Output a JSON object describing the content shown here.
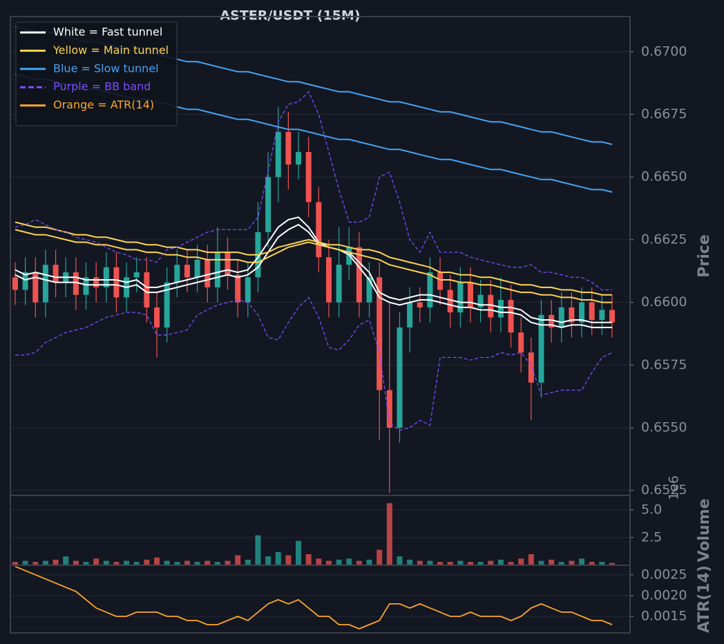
{
  "chart_data": [
    {
      "type": "candlestick",
      "title": "ASTER/USDT (15M)",
      "ylabel": "Price",
      "ylim": [
        0.6523,
        0.6714
      ],
      "yticks": [
        {
          "value": 0.6525,
          "label": "0.6525"
        },
        {
          "value": 0.655,
          "label": "0.6550"
        },
        0.6575,
        {
          "value": 0.66,
          "label": "0.6600"
        },
        0.6625,
        {
          "value": 0.665,
          "label": "0.6650"
        },
        0.6675,
        {
          "value": 0.67,
          "label": "0.6700"
        }
      ],
      "grid": true,
      "legend": "upper left",
      "up_color": "#26a69a",
      "down_color": "#ef5350",
      "open": [
        0.661,
        0.6605,
        0.6612,
        0.66,
        0.6615,
        0.6608,
        0.6612,
        0.6603,
        0.661,
        0.6606,
        0.6614,
        0.6602,
        0.661,
        0.6612,
        0.6598,
        0.659,
        0.6608,
        0.6615,
        0.661,
        0.6617,
        0.6606,
        0.662,
        0.6611,
        0.66,
        0.661,
        0.6628,
        0.665,
        0.6668,
        0.6655,
        0.666,
        0.664,
        0.6618,
        0.66,
        0.6615,
        0.6622,
        0.66,
        0.661,
        0.6565,
        0.655,
        0.659,
        0.66,
        0.6598,
        0.6612,
        0.6605,
        0.6596,
        0.6608,
        0.6598,
        0.6603,
        0.6594,
        0.6601,
        0.6588,
        0.658,
        0.6568,
        0.6595,
        0.659,
        0.6598,
        0.6592,
        0.66,
        0.6593,
        0.6597
      ],
      "high": [
        0.6616,
        0.6618,
        0.6618,
        0.6621,
        0.6621,
        0.6618,
        0.6618,
        0.6616,
        0.6616,
        0.662,
        0.662,
        0.6616,
        0.6618,
        0.6618,
        0.6604,
        0.6614,
        0.6621,
        0.6621,
        0.6623,
        0.6623,
        0.663,
        0.6626,
        0.6617,
        0.6616,
        0.664,
        0.666,
        0.6678,
        0.6676,
        0.6668,
        0.6666,
        0.6646,
        0.6625,
        0.663,
        0.663,
        0.6628,
        0.6616,
        0.6616,
        0.66,
        0.6596,
        0.6606,
        0.6606,
        0.6618,
        0.6618,
        0.6611,
        0.6614,
        0.6614,
        0.6609,
        0.6609,
        0.661,
        0.6607,
        0.6594,
        0.6586,
        0.6601,
        0.6601,
        0.6604,
        0.6604,
        0.6606,
        0.6606,
        0.6603,
        0.6603
      ],
      "low": [
        0.6599,
        0.6599,
        0.6594,
        0.6594,
        0.6602,
        0.6602,
        0.6597,
        0.6597,
        0.66,
        0.66,
        0.6596,
        0.6596,
        0.6604,
        0.6592,
        0.6578,
        0.6584,
        0.6602,
        0.6604,
        0.6604,
        0.66,
        0.66,
        0.6605,
        0.6594,
        0.6594,
        0.6604,
        0.6622,
        0.664,
        0.6645,
        0.6649,
        0.6634,
        0.6612,
        0.6594,
        0.6594,
        0.6609,
        0.6594,
        0.6594,
        0.6545,
        0.6524,
        0.6544,
        0.658,
        0.6592,
        0.6592,
        0.6599,
        0.659,
        0.659,
        0.6592,
        0.6592,
        0.6588,
        0.6588,
        0.6582,
        0.6572,
        0.6553,
        0.6562,
        0.6584,
        0.6584,
        0.6586,
        0.6586,
        0.6587,
        0.6587,
        0.6586
      ],
      "close": [
        0.6605,
        0.6612,
        0.66,
        0.6615,
        0.6608,
        0.6612,
        0.6603,
        0.661,
        0.6606,
        0.6614,
        0.6602,
        0.661,
        0.6612,
        0.6598,
        0.659,
        0.6608,
        0.6615,
        0.661,
        0.6617,
        0.6606,
        0.662,
        0.6611,
        0.66,
        0.661,
        0.6628,
        0.665,
        0.6668,
        0.6655,
        0.666,
        0.664,
        0.6618,
        0.66,
        0.6615,
        0.6622,
        0.66,
        0.661,
        0.6565,
        0.655,
        0.659,
        0.66,
        0.6598,
        0.6612,
        0.6605,
        0.6596,
        0.6608,
        0.6598,
        0.6603,
        0.6594,
        0.6601,
        0.6588,
        0.658,
        0.6568,
        0.6595,
        0.659,
        0.6598,
        0.6592,
        0.66,
        0.6593,
        0.6597,
        0.6592
      ],
      "series": [
        {
          "name": "White = Fast tunnel",
          "color": "#ffffff",
          "dashed": false,
          "lines": [
            [
              0.6613,
              0.6611,
              0.6612,
              0.6611,
              0.661,
              0.661,
              0.661,
              0.6609,
              0.6609,
              0.6609,
              0.6609,
              0.6608,
              0.6609,
              0.6606,
              0.6606,
              0.6607,
              0.6608,
              0.6609,
              0.661,
              0.6611,
              0.6612,
              0.6613,
              0.6612,
              0.6613,
              0.6618,
              0.6624,
              0.663,
              0.6633,
              0.6634,
              0.663,
              0.6624,
              0.6622,
              0.6621,
              0.662,
              0.6616,
              0.6612,
              0.6604,
              0.6602,
              0.6601,
              0.6602,
              0.6603,
              0.6603,
              0.6602,
              0.6601,
              0.66,
              0.66,
              0.6599,
              0.6599,
              0.6598,
              0.6598,
              0.6597,
              0.6594,
              0.6593,
              0.6593,
              0.6592,
              0.6593,
              0.6593,
              0.6592,
              0.6592,
              0.6592
            ],
            [
              0.6611,
              0.6609,
              0.661,
              0.6609,
              0.6608,
              0.6608,
              0.6608,
              0.6607,
              0.6607,
              0.6607,
              0.6607,
              0.6606,
              0.6607,
              0.6604,
              0.6604,
              0.6605,
              0.6606,
              0.6607,
              0.6608,
              0.6609,
              0.661,
              0.6611,
              0.661,
              0.6611,
              0.6614,
              0.662,
              0.6626,
              0.6629,
              0.6631,
              0.6628,
              0.6623,
              0.6622,
              0.6621,
              0.6619,
              0.6614,
              0.6609,
              0.6602,
              0.66,
              0.6599,
              0.66,
              0.6601,
              0.6601,
              0.66,
              0.6599,
              0.6598,
              0.6598,
              0.6597,
              0.6597,
              0.6596,
              0.6596,
              0.6595,
              0.6592,
              0.6591,
              0.6591,
              0.659,
              0.6591,
              0.6591,
              0.659,
              0.659,
              0.659
            ]
          ]
        },
        {
          "name": "Yellow = Main tunnel",
          "color": "#ffd54f",
          "dashed": false,
          "lines": [
            [
              0.6632,
              0.6631,
              0.663,
              0.663,
              0.6629,
              0.6628,
              0.6627,
              0.6627,
              0.6626,
              0.6626,
              0.6625,
              0.6624,
              0.6624,
              0.6623,
              0.6623,
              0.6622,
              0.6622,
              0.6621,
              0.6621,
              0.662,
              0.662,
              0.662,
              0.662,
              0.6619,
              0.6619,
              0.662,
              0.6622,
              0.6623,
              0.6624,
              0.6625,
              0.6624,
              0.6623,
              0.6623,
              0.6622,
              0.6621,
              0.6621,
              0.662,
              0.6618,
              0.6617,
              0.6616,
              0.6615,
              0.6614,
              0.6612,
              0.6612,
              0.6611,
              0.6611,
              0.661,
              0.661,
              0.6609,
              0.6608,
              0.6607,
              0.6607,
              0.6606,
              0.6606,
              0.6605,
              0.6605,
              0.6604,
              0.6604,
              0.6603,
              0.6603
            ],
            [
              0.6629,
              0.6628,
              0.6627,
              0.6627,
              0.6626,
              0.6625,
              0.6624,
              0.6624,
              0.6623,
              0.6623,
              0.6622,
              0.6621,
              0.6621,
              0.662,
              0.662,
              0.6619,
              0.6619,
              0.6618,
              0.6618,
              0.6617,
              0.6617,
              0.6617,
              0.6617,
              0.6616,
              0.6616,
              0.6618,
              0.662,
              0.6622,
              0.6623,
              0.6624,
              0.6623,
              0.6622,
              0.6621,
              0.662,
              0.6619,
              0.6618,
              0.6617,
              0.6615,
              0.6614,
              0.6613,
              0.6612,
              0.6611,
              0.6609,
              0.6609,
              0.6608,
              0.6608,
              0.6607,
              0.6607,
              0.6606,
              0.6605,
              0.6604,
              0.6604,
              0.6603,
              0.6603,
              0.6602,
              0.6602,
              0.6601,
              0.6601,
              0.66,
              0.66
            ]
          ]
        },
        {
          "name": "Blue = Slow tunnel",
          "color": "#42a5f5",
          "dashed": false,
          "lines": [
            [
              0.671,
              0.6709,
              0.6708,
              0.6708,
              0.6707,
              0.6706,
              0.6705,
              0.6704,
              0.6704,
              0.6703,
              0.6702,
              0.6701,
              0.67,
              0.67,
              0.6699,
              0.6698,
              0.6697,
              0.6696,
              0.6696,
              0.6695,
              0.6694,
              0.6693,
              0.6692,
              0.6692,
              0.6691,
              0.669,
              0.6689,
              0.6688,
              0.6688,
              0.6687,
              0.6686,
              0.6685,
              0.6684,
              0.6684,
              0.6683,
              0.6682,
              0.6681,
              0.668,
              0.668,
              0.6679,
              0.6678,
              0.6677,
              0.6676,
              0.6676,
              0.6675,
              0.6674,
              0.6673,
              0.6672,
              0.6672,
              0.6671,
              0.667,
              0.6669,
              0.6668,
              0.6668,
              0.6667,
              0.6666,
              0.6665,
              0.6664,
              0.6664,
              0.6663
            ],
            [
              0.6691,
              0.669,
              0.6689,
              0.6689,
              0.6688,
              0.6687,
              0.6686,
              0.6685,
              0.6685,
              0.6684,
              0.6683,
              0.6682,
              0.6681,
              0.6681,
              0.668,
              0.6679,
              0.6678,
              0.6677,
              0.6677,
              0.6676,
              0.6675,
              0.6674,
              0.6673,
              0.6673,
              0.6672,
              0.6671,
              0.667,
              0.6669,
              0.6669,
              0.6668,
              0.6667,
              0.6666,
              0.6665,
              0.6665,
              0.6664,
              0.6663,
              0.6662,
              0.6661,
              0.6661,
              0.666,
              0.6659,
              0.6658,
              0.6657,
              0.6657,
              0.6656,
              0.6655,
              0.6654,
              0.6653,
              0.6653,
              0.6652,
              0.6651,
              0.665,
              0.6649,
              0.6649,
              0.6648,
              0.6647,
              0.6646,
              0.6645,
              0.6645,
              0.6644
            ]
          ]
        },
        {
          "name": "Purple = BB band",
          "color": "#7c4dff",
          "dashed": true,
          "lines": [
            [
              0.663,
              0.6631,
              0.6633,
              0.6631,
              0.6629,
              0.6628,
              0.6626,
              0.6625,
              0.6624,
              0.6622,
              0.662,
              0.6619,
              0.6617,
              0.6617,
              0.6616,
              0.6621,
              0.6622,
              0.6624,
              0.6626,
              0.6628,
              0.6629,
              0.6629,
              0.6629,
              0.6629,
              0.6634,
              0.6652,
              0.6672,
              0.6679,
              0.668,
              0.6684,
              0.6675,
              0.666,
              0.6645,
              0.6632,
              0.6632,
              0.6634,
              0.665,
              0.6652,
              0.664,
              0.6625,
              0.662,
              0.6628,
              0.662,
              0.662,
              0.662,
              0.6618,
              0.6617,
              0.6616,
              0.6615,
              0.6614,
              0.6614,
              0.6615,
              0.6612,
              0.6612,
              0.6611,
              0.661,
              0.661,
              0.6608,
              0.6605,
              0.6605
            ],
            [
              0.6579,
              0.6579,
              0.658,
              0.6584,
              0.6586,
              0.6588,
              0.6589,
              0.659,
              0.6592,
              0.6594,
              0.6595,
              0.6596,
              0.6596,
              0.6595,
              0.6587,
              0.6587,
              0.6588,
              0.6589,
              0.6595,
              0.6597,
              0.6599,
              0.66,
              0.6601,
              0.66,
              0.6595,
              0.6586,
              0.6585,
              0.6592,
              0.6598,
              0.6602,
              0.6594,
              0.6582,
              0.6581,
              0.6585,
              0.6591,
              0.6593,
              0.658,
              0.6552,
              0.6549,
              0.655,
              0.6553,
              0.6551,
              0.6578,
              0.6578,
              0.6578,
              0.6577,
              0.6578,
              0.6578,
              0.658,
              0.6579,
              0.658,
              0.6575,
              0.6563,
              0.6564,
              0.6565,
              0.6565,
              0.6565,
              0.6572,
              0.6578,
              0.658
            ]
          ]
        }
      ]
    },
    {
      "type": "bar",
      "ylabel": "Volume",
      "offset_label": "1e6",
      "ylim": [
        0,
        6.3
      ],
      "yticks": [
        2.5,
        {
          "value": 5,
          "label": "5.0"
        }
      ],
      "grid": true,
      "values": [
        0.3,
        0.4,
        0.3,
        0.4,
        0.5,
        0.8,
        0.4,
        0.3,
        0.6,
        0.4,
        0.3,
        0.4,
        0.3,
        0.5,
        0.7,
        0.4,
        0.3,
        0.4,
        0.3,
        0.4,
        0.3,
        0.4,
        0.9,
        0.5,
        2.7,
        0.8,
        1.2,
        0.9,
        2.2,
        1.0,
        0.6,
        0.4,
        0.5,
        0.6,
        0.4,
        0.5,
        1.4,
        5.6,
        0.8,
        0.5,
        0.4,
        0.4,
        0.3,
        0.3,
        0.4,
        0.3,
        0.3,
        0.4,
        0.5,
        0.3,
        0.6,
        1.0,
        0.4,
        0.5,
        0.3,
        0.4,
        0.6,
        0.3,
        0.3,
        0.2
      ]
    },
    {
      "type": "line",
      "ylabel": "ATR(14)",
      "ylim": [
        0.0011,
        0.00273
      ],
      "yticks": [
        0.0015,
        {
          "value": 0.002,
          "label": "0.0020"
        },
        0.0025
      ],
      "grid": true,
      "series": [
        {
          "name": "Orange = ATR(14)",
          "color": "#ffa726",
          "values": [
            0.0027,
            0.0026,
            0.0025,
            0.0024,
            0.0023,
            0.0022,
            0.0021,
            0.0019,
            0.0017,
            0.0016,
            0.0015,
            0.0015,
            0.0016,
            0.0016,
            0.0016,
            0.0015,
            0.0015,
            0.0014,
            0.0014,
            0.0013,
            0.0013,
            0.0014,
            0.0015,
            0.0014,
            0.0016,
            0.0018,
            0.0019,
            0.0018,
            0.0019,
            0.0017,
            0.0015,
            0.0015,
            0.0013,
            0.0013,
            0.0012,
            0.0013,
            0.0014,
            0.0018,
            0.0018,
            0.0017,
            0.0018,
            0.0017,
            0.0016,
            0.0015,
            0.0015,
            0.0016,
            0.0015,
            0.0015,
            0.0015,
            0.0014,
            0.0015,
            0.0017,
            0.0018,
            0.0017,
            0.0016,
            0.0016,
            0.0015,
            0.0014,
            0.0014,
            0.0013
          ]
        }
      ]
    }
  ]
}
